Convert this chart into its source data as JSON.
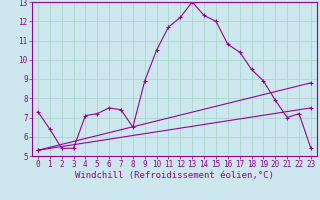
{
  "xlabel": "Windchill (Refroidissement éolien,°C)",
  "bg_color": "#cce8ee",
  "line_color": "#990099",
  "grid_color": "#aad8cc",
  "xlim": [
    -0.5,
    23.5
  ],
  "ylim": [
    5,
    13
  ],
  "xticks": [
    0,
    1,
    2,
    3,
    4,
    5,
    6,
    7,
    8,
    9,
    10,
    11,
    12,
    13,
    14,
    15,
    16,
    17,
    18,
    19,
    20,
    21,
    22,
    23
  ],
  "yticks": [
    5,
    6,
    7,
    8,
    9,
    10,
    11,
    12,
    13
  ],
  "series1_x": [
    0,
    1,
    2,
    3,
    4,
    5,
    6,
    7,
    8,
    9,
    10,
    11,
    12,
    13,
    14,
    15,
    16,
    17,
    18,
    19,
    20,
    21,
    22,
    23
  ],
  "series1_y": [
    7.3,
    6.4,
    5.4,
    5.4,
    7.1,
    7.2,
    7.5,
    7.4,
    6.5,
    8.9,
    10.5,
    11.7,
    12.2,
    13.0,
    12.3,
    12.0,
    10.8,
    10.4,
    9.5,
    8.9,
    7.9,
    7.0,
    7.2,
    5.4
  ],
  "series2_x": [
    0,
    23
  ],
  "series2_y": [
    5.3,
    7.5
  ],
  "series3_x": [
    0,
    23
  ],
  "series3_y": [
    5.3,
    8.8
  ],
  "tick_fontsize": 5.5,
  "label_fontsize": 6.5
}
